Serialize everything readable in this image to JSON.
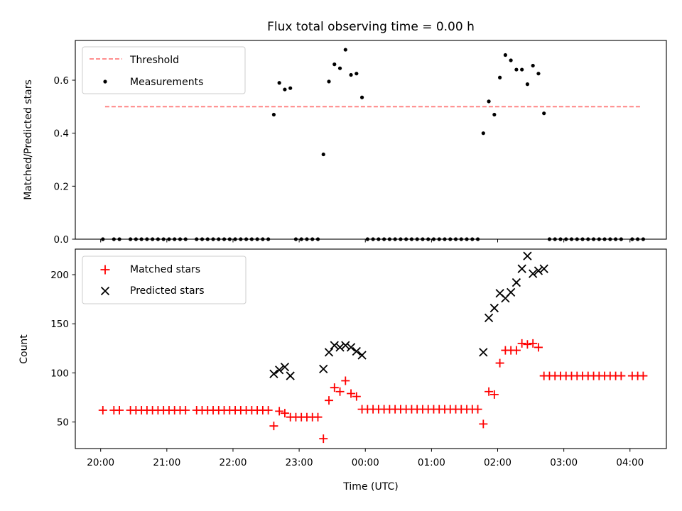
{
  "chart_data": [
    {
      "type": "scatter",
      "title": "Flux total observing time = 0.00 h",
      "xlabel": "",
      "ylabel": "Matched/Predicted stars",
      "xlim": [
        "19:37",
        "04:33"
      ],
      "ylim": [
        0,
        0.75
      ],
      "yticks": [
        "0.0",
        "0.2",
        "0.4",
        "0.6"
      ],
      "legend_position": "upper-left",
      "grid": false,
      "threshold": {
        "name": "Threshold",
        "y": 0.5,
        "x_start": "20:04",
        "x_end": "04:10",
        "color": "#ff7f7f",
        "style": "dashed"
      },
      "series": [
        {
          "name": "Measurements",
          "color": "#000000",
          "marker": "dot",
          "points": [
            [
              "20:02",
              0
            ],
            [
              "20:12",
              0
            ],
            [
              "20:17",
              0
            ],
            [
              "20:27",
              0
            ],
            [
              "20:32",
              0
            ],
            [
              "20:37",
              0
            ],
            [
              "20:42",
              0
            ],
            [
              "20:47",
              0
            ],
            [
              "20:52",
              0
            ],
            [
              "20:57",
              0
            ],
            [
              "21:02",
              0
            ],
            [
              "21:07",
              0
            ],
            [
              "21:12",
              0
            ],
            [
              "21:17",
              0
            ],
            [
              "21:27",
              0
            ],
            [
              "21:32",
              0
            ],
            [
              "21:37",
              0
            ],
            [
              "21:42",
              0
            ],
            [
              "21:47",
              0
            ],
            [
              "21:52",
              0
            ],
            [
              "21:57",
              0
            ],
            [
              "22:02",
              0
            ],
            [
              "22:07",
              0
            ],
            [
              "22:12",
              0
            ],
            [
              "22:17",
              0
            ],
            [
              "22:22",
              0
            ],
            [
              "22:27",
              0
            ],
            [
              "22:32",
              0
            ],
            [
              "22:37",
              0.47
            ],
            [
              "22:42",
              0.59
            ],
            [
              "22:47",
              0.565
            ],
            [
              "22:52",
              0.57
            ],
            [
              "22:57",
              0
            ],
            [
              "23:02",
              0
            ],
            [
              "23:07",
              0
            ],
            [
              "23:12",
              0
            ],
            [
              "23:17",
              0
            ],
            [
              "23:22",
              0.32
            ],
            [
              "23:27",
              0.595
            ],
            [
              "23:32",
              0.66
            ],
            [
              "23:37",
              0.645
            ],
            [
              "23:42",
              0.715
            ],
            [
              "23:47",
              0.62
            ],
            [
              "23:52",
              0.625
            ],
            [
              "23:57",
              0.535
            ],
            [
              "00:02",
              0
            ],
            [
              "00:07",
              0
            ],
            [
              "00:12",
              0
            ],
            [
              "00:17",
              0
            ],
            [
              "00:22",
              0
            ],
            [
              "00:27",
              0
            ],
            [
              "00:32",
              0
            ],
            [
              "00:37",
              0
            ],
            [
              "00:42",
              0
            ],
            [
              "00:47",
              0
            ],
            [
              "00:52",
              0
            ],
            [
              "00:57",
              0
            ],
            [
              "01:02",
              0
            ],
            [
              "01:07",
              0
            ],
            [
              "01:12",
              0
            ],
            [
              "01:17",
              0
            ],
            [
              "01:22",
              0
            ],
            [
              "01:27",
              0
            ],
            [
              "01:32",
              0
            ],
            [
              "01:37",
              0
            ],
            [
              "01:42",
              0
            ],
            [
              "01:47",
              0.4
            ],
            [
              "01:52",
              0.52
            ],
            [
              "01:57",
              0.47
            ],
            [
              "02:02",
              0.61
            ],
            [
              "02:07",
              0.695
            ],
            [
              "02:12",
              0.675
            ],
            [
              "02:17",
              0.64
            ],
            [
              "02:22",
              0.64
            ],
            [
              "02:27",
              0.585
            ],
            [
              "02:32",
              0.655
            ],
            [
              "02:37",
              0.625
            ],
            [
              "02:42",
              0.475
            ],
            [
              "02:47",
              0
            ],
            [
              "02:52",
              0
            ],
            [
              "02:57",
              0
            ],
            [
              "03:02",
              0
            ],
            [
              "03:07",
              0
            ],
            [
              "03:12",
              0
            ],
            [
              "03:17",
              0
            ],
            [
              "03:22",
              0
            ],
            [
              "03:27",
              0
            ],
            [
              "03:32",
              0
            ],
            [
              "03:37",
              0
            ],
            [
              "03:42",
              0
            ],
            [
              "03:47",
              0
            ],
            [
              "03:52",
              0
            ],
            [
              "04:02",
              0
            ],
            [
              "04:07",
              0
            ],
            [
              "04:12",
              0
            ]
          ]
        }
      ]
    },
    {
      "type": "scatter",
      "title": "",
      "xlabel": "Time (UTC)",
      "ylabel": "Count",
      "xlim": [
        "19:37",
        "04:33"
      ],
      "ylim": [
        23,
        226
      ],
      "yticks": [
        "50",
        "100",
        "150",
        "200"
      ],
      "xticks": [
        "20:00",
        "21:00",
        "22:00",
        "23:00",
        "00:00",
        "01:00",
        "02:00",
        "03:00",
        "04:00"
      ],
      "legend_position": "upper-left",
      "grid": false,
      "series": [
        {
          "name": "Matched stars",
          "color": "#ff0000",
          "marker": "plus",
          "points": [
            [
              "20:02",
              62
            ],
            [
              "20:12",
              62
            ],
            [
              "20:17",
              62
            ],
            [
              "20:27",
              62
            ],
            [
              "20:32",
              62
            ],
            [
              "20:37",
              62
            ],
            [
              "20:42",
              62
            ],
            [
              "20:47",
              62
            ],
            [
              "20:52",
              62
            ],
            [
              "20:57",
              62
            ],
            [
              "21:02",
              62
            ],
            [
              "21:07",
              62
            ],
            [
              "21:12",
              62
            ],
            [
              "21:17",
              62
            ],
            [
              "21:27",
              62
            ],
            [
              "21:32",
              62
            ],
            [
              "21:37",
              62
            ],
            [
              "21:42",
              62
            ],
            [
              "21:47",
              62
            ],
            [
              "21:52",
              62
            ],
            [
              "21:57",
              62
            ],
            [
              "22:02",
              62
            ],
            [
              "22:07",
              62
            ],
            [
              "22:12",
              62
            ],
            [
              "22:17",
              62
            ],
            [
              "22:22",
              62
            ],
            [
              "22:27",
              62
            ],
            [
              "22:32",
              62
            ],
            [
              "22:37",
              46
            ],
            [
              "22:42",
              61
            ],
            [
              "22:47",
              59
            ],
            [
              "22:52",
              55
            ],
            [
              "22:57",
              55
            ],
            [
              "23:02",
              55
            ],
            [
              "23:07",
              55
            ],
            [
              "23:12",
              55
            ],
            [
              "23:17",
              55
            ],
            [
              "23:22",
              33
            ],
            [
              "23:27",
              72
            ],
            [
              "23:32",
              85
            ],
            [
              "23:37",
              81
            ],
            [
              "23:42",
              92
            ],
            [
              "23:47",
              79
            ],
            [
              "23:52",
              76
            ],
            [
              "23:57",
              63
            ],
            [
              "00:02",
              63
            ],
            [
              "00:07",
              63
            ],
            [
              "00:12",
              63
            ],
            [
              "00:17",
              63
            ],
            [
              "00:22",
              63
            ],
            [
              "00:27",
              63
            ],
            [
              "00:32",
              63
            ],
            [
              "00:37",
              63
            ],
            [
              "00:42",
              63
            ],
            [
              "00:47",
              63
            ],
            [
              "00:52",
              63
            ],
            [
              "00:57",
              63
            ],
            [
              "01:02",
              63
            ],
            [
              "01:07",
              63
            ],
            [
              "01:12",
              63
            ],
            [
              "01:17",
              63
            ],
            [
              "01:22",
              63
            ],
            [
              "01:27",
              63
            ],
            [
              "01:32",
              63
            ],
            [
              "01:37",
              63
            ],
            [
              "01:42",
              63
            ],
            [
              "01:47",
              48
            ],
            [
              "01:52",
              81
            ],
            [
              "01:57",
              78
            ],
            [
              "02:02",
              110
            ],
            [
              "02:07",
              123
            ],
            [
              "02:12",
              123
            ],
            [
              "02:17",
              123
            ],
            [
              "02:22",
              130
            ],
            [
              "02:27",
              129
            ],
            [
              "02:32",
              130
            ],
            [
              "02:37",
              126
            ],
            [
              "02:42",
              97
            ],
            [
              "02:47",
              97
            ],
            [
              "02:52",
              97
            ],
            [
              "02:57",
              97
            ],
            [
              "03:02",
              97
            ],
            [
              "03:07",
              97
            ],
            [
              "03:12",
              97
            ],
            [
              "03:17",
              97
            ],
            [
              "03:22",
              97
            ],
            [
              "03:27",
              97
            ],
            [
              "03:32",
              97
            ],
            [
              "03:37",
              97
            ],
            [
              "03:42",
              97
            ],
            [
              "03:47",
              97
            ],
            [
              "03:52",
              97
            ],
            [
              "04:02",
              97
            ],
            [
              "04:07",
              97
            ],
            [
              "04:12",
              97
            ]
          ]
        },
        {
          "name": "Predicted stars",
          "color": "#000000",
          "marker": "x",
          "points": [
            [
              "22:37",
              99
            ],
            [
              "22:42",
              103
            ],
            [
              "22:47",
              106
            ],
            [
              "22:52",
              97
            ],
            [
              "23:22",
              104
            ],
            [
              "23:27",
              121
            ],
            [
              "23:32",
              128
            ],
            [
              "23:37",
              126
            ],
            [
              "23:42",
              128
            ],
            [
              "23:47",
              126
            ],
            [
              "23:52",
              122
            ],
            [
              "23:57",
              118
            ],
            [
              "01:47",
              121
            ],
            [
              "01:52",
              156
            ],
            [
              "01:57",
              166
            ],
            [
              "02:02",
              181
            ],
            [
              "02:07",
              176
            ],
            [
              "02:12",
              182
            ],
            [
              "02:17",
              192
            ],
            [
              "02:22",
              206
            ],
            [
              "02:27",
              219
            ],
            [
              "02:32",
              201
            ],
            [
              "02:37",
              204
            ],
            [
              "02:42",
              206
            ]
          ]
        }
      ]
    }
  ]
}
